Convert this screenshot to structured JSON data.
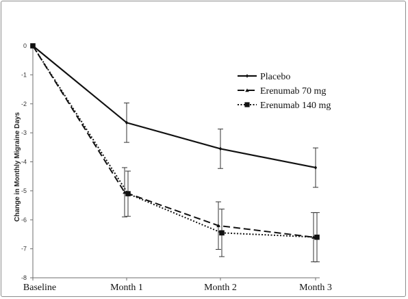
{
  "chart_data": {
    "type": "line",
    "title": "",
    "xlabel": "",
    "ylabel": "Change in Monthly Migraine Days",
    "categories": [
      "Baseline",
      "Month 1",
      "Month 2",
      "Month 3"
    ],
    "y_ticks": [
      "0",
      "-1",
      "-2",
      "-3",
      "-4",
      "-5",
      "-6",
      "-7",
      "-8"
    ],
    "ylim": [
      -8,
      0
    ],
    "grid": false,
    "legend_position": "upper-right",
    "series": [
      {
        "name": "Placebo",
        "style": "solid",
        "marker": "diamond",
        "values": [
          0,
          -2.65,
          -3.55,
          -4.2
        ],
        "err": [
          0,
          0.68,
          0.68,
          0.68
        ],
        "color": "#111111"
      },
      {
        "name": "Erenumab 70 mg",
        "style": "dashed",
        "marker": "triangle",
        "values": [
          0,
          -5.05,
          -6.2,
          -6.6
        ],
        "err": [
          0,
          0.85,
          0.82,
          0.85
        ],
        "color": "#111111"
      },
      {
        "name": "Erenumab 140 mg",
        "style": "dotted",
        "marker": "square",
        "values": [
          0,
          -5.1,
          -6.45,
          -6.6
        ],
        "err": [
          0,
          0.78,
          0.82,
          0.85
        ],
        "color": "#111111"
      }
    ]
  }
}
